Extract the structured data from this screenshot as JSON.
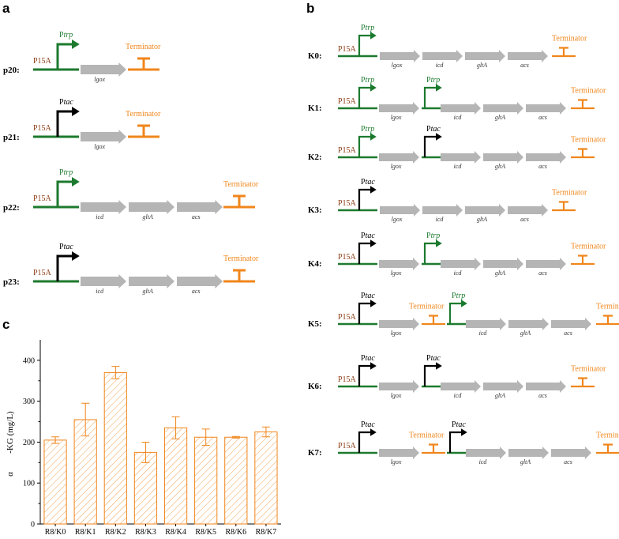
{
  "panels": {
    "a": "a",
    "b": "b",
    "c": "c"
  },
  "labels": {
    "p15a": "P15A",
    "terminator": "Terminator",
    "p_prefix": "P",
    "trp": "trp",
    "tac": "tac"
  },
  "colors": {
    "green": "#1C7A2E",
    "orange": "#F0861C",
    "gray": "#B5B5B5",
    "black": "#000000",
    "p15a_text": "#8B3A12"
  },
  "constructs_a": [
    {
      "name": "p20:",
      "promoter": "trp",
      "genes": [
        "lgox"
      ]
    },
    {
      "name": "p21:",
      "promoter": "tac",
      "genes": [
        "lgox"
      ]
    },
    {
      "name": "p22:",
      "promoter": "trp",
      "genes": [
        "icd",
        "gltA",
        "acs"
      ]
    },
    {
      "name": "p23:",
      "promoter": "tac",
      "genes": [
        "icd",
        "gltA",
        "acs"
      ]
    }
  ],
  "constructs_b": [
    {
      "name": "K0:",
      "layout": "single",
      "p1": "trp",
      "genes": [
        "lgox",
        "icd",
        "gltA",
        "acs"
      ]
    },
    {
      "name": "K1:",
      "layout": "double",
      "p1": "trp",
      "p2": "trp",
      "genes1": [
        "lgox"
      ],
      "genes2": [
        "icd",
        "gltA",
        "acs"
      ]
    },
    {
      "name": "K2:",
      "layout": "double",
      "p1": "trp",
      "p2": "tac",
      "genes1": [
        "lgox"
      ],
      "genes2": [
        "icd",
        "gltA",
        "acs"
      ]
    },
    {
      "name": "K3:",
      "layout": "single",
      "p1": "tac",
      "genes": [
        "lgox",
        "icd",
        "gltA",
        "acs"
      ]
    },
    {
      "name": "K4:",
      "layout": "double",
      "p1": "tac",
      "p2": "trp",
      "genes1": [
        "lgox"
      ],
      "genes2": [
        "icd",
        "gltA",
        "acs"
      ]
    },
    {
      "name": "K5:",
      "layout": "double_term",
      "p1": "tac",
      "p2": "trp",
      "genes1": [
        "lgox"
      ],
      "genes2": [
        "icd",
        "gltA",
        "acs"
      ]
    },
    {
      "name": "K6:",
      "layout": "double",
      "p1": "tac",
      "p2": "tac",
      "genes1": [
        "lgox"
      ],
      "genes2": [
        "icd",
        "gltA",
        "acs"
      ]
    },
    {
      "name": "K7:",
      "layout": "double_term",
      "p1": "tac",
      "p2": "tac",
      "genes1": [
        "lgox"
      ],
      "genes2": [
        "icd",
        "gltA",
        "acs"
      ]
    }
  ],
  "chart_data": {
    "type": "bar",
    "categories": [
      "R8/K0",
      "R8/K1",
      "R8/K2",
      "R8/K3",
      "R8/K4",
      "R8/K5",
      "R8/K6",
      "R8/K7"
    ],
    "values": [
      205,
      255,
      370,
      175,
      235,
      212,
      212,
      225
    ],
    "errors": [
      8,
      40,
      15,
      25,
      27,
      20,
      2,
      12
    ],
    "ylabel_greek": "α",
    "ylabel": "-KG (mg/L)",
    "ylim": [
      0,
      450
    ],
    "yticks": [
      0,
      100,
      200,
      300,
      400
    ],
    "bar_style": "hatched-orange"
  }
}
